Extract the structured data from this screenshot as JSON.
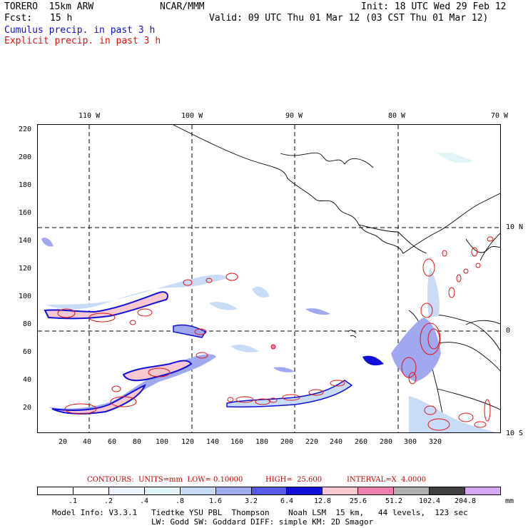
{
  "header": {
    "model": "TORERO  15km ARW",
    "center": "NCAR/MMM",
    "init": "Init: 18 UTC Wed 29 Feb 12",
    "fcst_label": "Fcst:",
    "fcst_value": "15 h",
    "valid": "Valid: 09 UTC Thu 01 Mar 12 (03 CST Thu 01 Mar 12)",
    "line_cumulus": "Cumulus precip. in past 3 h",
    "line_explicit": "Explicit precip. in past 3 h"
  },
  "top_ticks": [
    "110 W",
    "100 W",
    "90 W",
    "80 W",
    "70 W"
  ],
  "left_ticks": [
    "220",
    "200",
    "180",
    "160",
    "140",
    "120",
    "100",
    "80",
    "60",
    "40",
    "20"
  ],
  "bottom_ticks": [
    "20",
    "40",
    "60",
    "80",
    "100",
    "120",
    "140",
    "160",
    "180",
    "200",
    "220",
    "240",
    "260",
    "280",
    "300",
    "320"
  ],
  "right_ticks": [
    "10 N",
    "0",
    "10 S"
  ],
  "contours": {
    "label": "CONTOURS:  UNITS=mm  LOW= 0.10000",
    "high": "HIGH=  25.600",
    "interval": "INTERVAL=X  4.0000"
  },
  "legend": {
    "labels": [
      ".1",
      ".2",
      ".4",
      ".8",
      "1.6",
      "3.2",
      "6.4",
      "12.8",
      "25.6",
      "51.2",
      "102.4",
      "204.8"
    ],
    "units": "mm",
    "colors": [
      "#ffffff",
      "#ffffff",
      "#eef4ff",
      "#e0f4f8",
      "#c8dcf8",
      "#a0a8f0",
      "#5a5ae8",
      "#1010d8",
      "#f8c8d0",
      "#f080b0",
      "#b0b0b0",
      "#404040",
      "#d8a8f8"
    ]
  },
  "footer": {
    "line1": "Model Info: V3.3.1   Tiedtke YSU PBL  Thompson    Noah LSM  15 km,   44 levels,  123 sec",
    "line2": "LW: Godd SW: Goddard DIFF: simple KM: 2D Smagor"
  },
  "colors": {
    "cumulus": "#1010c8",
    "explicit": "#e01010"
  }
}
